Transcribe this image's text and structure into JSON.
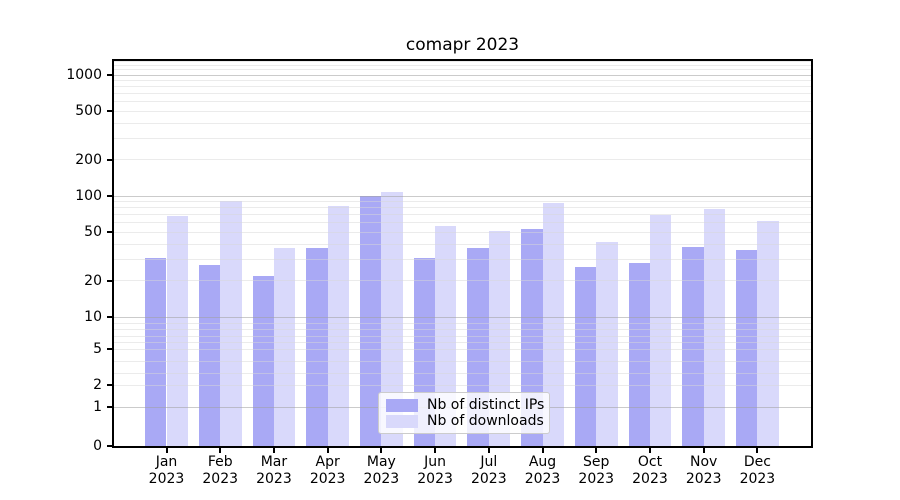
{
  "chart_data": {
    "type": "bar",
    "title": "comapr 2023",
    "categories": [
      "Jan 2023",
      "Feb 2023",
      "Mar 2023",
      "Apr 2023",
      "May 2023",
      "Jun 2023",
      "Jul 2023",
      "Aug 2023",
      "Sep 2023",
      "Oct 2023",
      "Nov 2023",
      "Dec 2023"
    ],
    "x_tick_months": [
      "Jan",
      "Feb",
      "Mar",
      "Apr",
      "May",
      "Jun",
      "Jul",
      "Aug",
      "Sep",
      "Oct",
      "Nov",
      "Dec"
    ],
    "x_tick_year": "2023",
    "series": [
      {
        "name": "Nb of distinct IPs",
        "color": "#a9a9f5",
        "values": [
          31,
          27,
          22,
          37,
          100,
          31,
          37,
          53,
          26,
          28,
          38,
          36
        ]
      },
      {
        "name": "Nb of downloads",
        "color": "#d9d9fb",
        "values": [
          68,
          91,
          37,
          82,
          107,
          56,
          51,
          88,
          42,
          69,
          78,
          62
        ]
      }
    ],
    "ylabel": "",
    "xlabel": "",
    "y_scale": "symlog",
    "y_tick_values": [
      0,
      1,
      2,
      5,
      10,
      20,
      50,
      100,
      200,
      500,
      1000
    ],
    "ylim": [
      0,
      1300
    ],
    "grid": true,
    "legend_position": "lower center",
    "colors": {
      "distinct_ips_bar": "#a9a9f5",
      "downloads_bar": "#d9d9fb",
      "grid_minor": "#ececec",
      "grid_major": "#c9c9c9",
      "spine": "#000000",
      "legend_border": "#cccccc"
    }
  }
}
